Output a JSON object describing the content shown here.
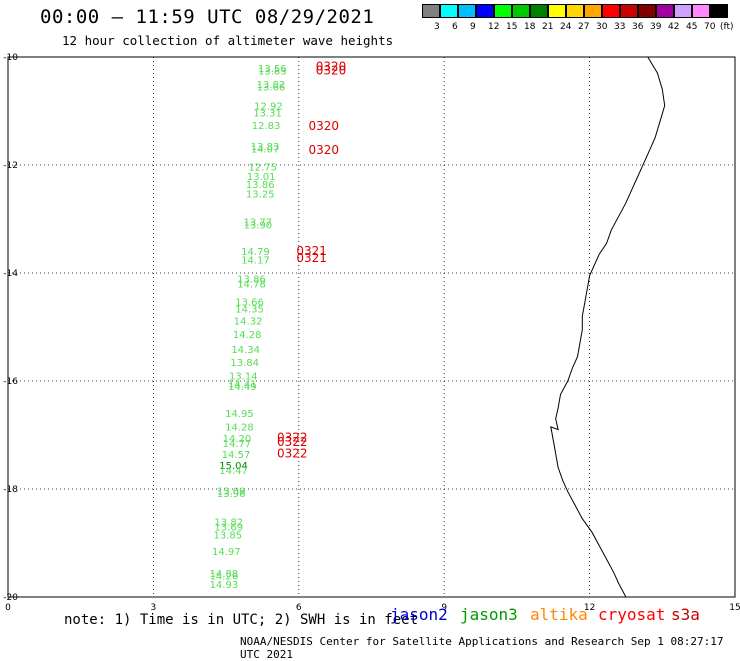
{
  "header": {
    "title": "00:00 — 11:59 UTC 08/29/2021",
    "subtitle": "12 hour collection of altimeter wave heights"
  },
  "colorbar": {
    "labels": [
      "3",
      "6",
      "9",
      "12",
      "15",
      "18",
      "21",
      "24",
      "27",
      "30",
      "33",
      "36",
      "39",
      "42",
      "45",
      "70"
    ],
    "unit": "(ft)",
    "colors": [
      "#808080",
      "#00ffff",
      "#00bfff",
      "#0000ff",
      "#00ff00",
      "#00c800",
      "#008000",
      "#ffff00",
      "#ffd700",
      "#ffa500",
      "#ff0000",
      "#c80000",
      "#800000",
      "#a000a0",
      "#d0a0ff",
      "#ff88ff",
      "#000000"
    ]
  },
  "footer": {
    "note": "note: 1) Time is in UTC; 2) SWH is in feet",
    "credit": "NOAA/NESDIS Center for Satellite Applications and Research   Sep  1 08:27:17 UTC 2021"
  },
  "satellites": [
    {
      "name": "jason2",
      "color": "#0000cc"
    },
    {
      "name": "jason3",
      "color": "#009900"
    },
    {
      "name": "altika",
      "color": "#ff8800"
    },
    {
      "name": "cryosat",
      "color": "#ff0000"
    },
    {
      "name": "s3a",
      "color": "#cc0000"
    }
  ],
  "chart_data": {
    "type": "scatter",
    "title": "12 hour collection of altimeter wave heights",
    "xlabel": "",
    "ylabel": "",
    "xlim": [
      0,
      15
    ],
    "ylim": [
      -20,
      -10
    ],
    "xticks": [
      "0",
      "3",
      "6",
      "9",
      "12",
      "15"
    ],
    "yticks": [
      "-10",
      "-12",
      "-14",
      "-16",
      "-18",
      "-20"
    ],
    "grid": true,
    "wave_heights_ft": [
      {
        "x": 5.75,
        "y": -10.28,
        "label": "13.56",
        "color": "#55dd55"
      },
      {
        "x": 5.75,
        "y": -10.32,
        "label": "13.83",
        "color": "#55dd55"
      },
      {
        "x": 5.72,
        "y": -10.57,
        "label": "13.82",
        "color": "#55dd55"
      },
      {
        "x": 5.72,
        "y": -10.62,
        "label": "13.66",
        "color": "#55dd55"
      },
      {
        "x": 5.67,
        "y": -10.97,
        "label": "12.92",
        "color": "#55dd55"
      },
      {
        "x": 5.65,
        "y": -11.1,
        "label": "13.31",
        "color": "#55dd55"
      },
      {
        "x": 5.62,
        "y": -11.33,
        "label": "12.83",
        "color": "#55dd55"
      },
      {
        "x": 5.6,
        "y": -11.72,
        "label": "13.83",
        "color": "#55dd55"
      },
      {
        "x": 5.6,
        "y": -11.77,
        "label": "14.07",
        "color": "#55dd55"
      },
      {
        "x": 5.55,
        "y": -12.1,
        "label": "12.75",
        "color": "#55dd55"
      },
      {
        "x": 5.52,
        "y": -12.28,
        "label": "13.01",
        "color": "#55dd55"
      },
      {
        "x": 5.5,
        "y": -12.43,
        "label": "13.86",
        "color": "#55dd55"
      },
      {
        "x": 5.5,
        "y": -12.6,
        "label": "13.25",
        "color": "#55dd55"
      },
      {
        "x": 5.45,
        "y": -13.12,
        "label": "13.77",
        "color": "#55dd55"
      },
      {
        "x": 5.45,
        "y": -13.18,
        "label": "13.90",
        "color": "#55dd55"
      },
      {
        "x": 5.4,
        "y": -13.67,
        "label": "14.79",
        "color": "#55dd55"
      },
      {
        "x": 5.4,
        "y": -13.82,
        "label": "14.17",
        "color": "#55dd55"
      },
      {
        "x": 5.32,
        "y": -14.18,
        "label": "13.86",
        "color": "#55dd55"
      },
      {
        "x": 5.32,
        "y": -14.27,
        "label": "14.78",
        "color": "#55dd55"
      },
      {
        "x": 5.28,
        "y": -14.6,
        "label": "13.66",
        "color": "#55dd55"
      },
      {
        "x": 5.28,
        "y": -14.73,
        "label": "14.35",
        "color": "#55dd55"
      },
      {
        "x": 5.25,
        "y": -14.95,
        "label": "14.32",
        "color": "#55dd55"
      },
      {
        "x": 5.23,
        "y": -15.2,
        "label": "14.28",
        "color": "#55dd55"
      },
      {
        "x": 5.2,
        "y": -15.48,
        "label": "14.34",
        "color": "#55dd55"
      },
      {
        "x": 5.18,
        "y": -15.72,
        "label": "13.84",
        "color": "#55dd55"
      },
      {
        "x": 5.15,
        "y": -15.97,
        "label": "13.14",
        "color": "#55dd55"
      },
      {
        "x": 5.13,
        "y": -16.12,
        "label": "14.41",
        "color": "#55dd55"
      },
      {
        "x": 5.13,
        "y": -16.17,
        "label": "14.49",
        "color": "#55dd55"
      },
      {
        "x": 5.07,
        "y": -16.67,
        "label": "14.95",
        "color": "#55dd55"
      },
      {
        "x": 5.07,
        "y": -16.92,
        "label": "14.28",
        "color": "#55dd55"
      },
      {
        "x": 5.02,
        "y": -17.13,
        "label": "14.20",
        "color": "#55dd55"
      },
      {
        "x": 5.02,
        "y": -17.22,
        "label": "14.77",
        "color": "#55dd55"
      },
      {
        "x": 5.0,
        "y": -17.43,
        "label": "14.57",
        "color": "#55dd55"
      },
      {
        "x": 4.95,
        "y": -17.63,
        "label": "15.04",
        "color": "#008800"
      },
      {
        "x": 4.95,
        "y": -17.72,
        "label": "14.47",
        "color": "#55dd55"
      },
      {
        "x": 4.9,
        "y": -18.1,
        "label": "13.09",
        "color": "#55dd55"
      },
      {
        "x": 4.9,
        "y": -18.15,
        "label": "13.96",
        "color": "#55dd55"
      },
      {
        "x": 4.85,
        "y": -18.68,
        "label": "13.82",
        "color": "#55dd55"
      },
      {
        "x": 4.85,
        "y": -18.77,
        "label": "13.69",
        "color": "#55dd55"
      },
      {
        "x": 4.83,
        "y": -18.92,
        "label": "13.85",
        "color": "#55dd55"
      },
      {
        "x": 4.8,
        "y": -19.22,
        "label": "14.97",
        "color": "#55dd55"
      },
      {
        "x": 4.75,
        "y": -19.63,
        "label": "14.88",
        "color": "#55dd55"
      },
      {
        "x": 4.75,
        "y": -19.68,
        "label": "14.26",
        "color": "#55dd55"
      },
      {
        "x": 4.75,
        "y": -19.83,
        "label": "14.93",
        "color": "#55dd55"
      }
    ],
    "pass_times": [
      {
        "x": 6.35,
        "y": -10.25,
        "label": "0320",
        "color": "#dd0000"
      },
      {
        "x": 6.35,
        "y": -10.32,
        "label": "0320",
        "color": "#dd0000"
      },
      {
        "x": 6.2,
        "y": -11.35,
        "label": "0320",
        "color": "#dd0000"
      },
      {
        "x": 6.2,
        "y": -11.8,
        "label": "0320",
        "color": "#dd0000"
      },
      {
        "x": 5.95,
        "y": -13.67,
        "label": "0321",
        "color": "#dd0000"
      },
      {
        "x": 5.95,
        "y": -13.8,
        "label": "0321",
        "color": "#dd0000"
      },
      {
        "x": 5.55,
        "y": -17.12,
        "label": "0322",
        "color": "#dd0000"
      },
      {
        "x": 5.55,
        "y": -17.2,
        "label": "0322",
        "color": "#dd0000"
      },
      {
        "x": 5.55,
        "y": -17.42,
        "label": "0322",
        "color": "#dd0000"
      }
    ],
    "coastline": [
      [
        13.2,
        -10.0
      ],
      [
        13.4,
        -10.3
      ],
      [
        13.5,
        -10.6
      ],
      [
        13.55,
        -10.9
      ],
      [
        13.45,
        -11.2
      ],
      [
        13.35,
        -11.5
      ],
      [
        13.2,
        -11.8
      ],
      [
        13.05,
        -12.1
      ],
      [
        12.9,
        -12.4
      ],
      [
        12.75,
        -12.7
      ],
      [
        12.6,
        -12.95
      ],
      [
        12.45,
        -13.2
      ],
      [
        12.35,
        -13.45
      ],
      [
        12.2,
        -13.65
      ],
      [
        12.1,
        -13.85
      ],
      [
        12.0,
        -14.05
      ],
      [
        11.95,
        -14.3
      ],
      [
        11.9,
        -14.55
      ],
      [
        11.85,
        -14.8
      ],
      [
        11.85,
        -15.05
      ],
      [
        11.8,
        -15.3
      ],
      [
        11.75,
        -15.55
      ],
      [
        11.65,
        -15.75
      ],
      [
        11.55,
        -16.0
      ],
      [
        11.4,
        -16.25
      ],
      [
        11.35,
        -16.5
      ],
      [
        11.3,
        -16.7
      ],
      [
        11.35,
        -16.9
      ],
      [
        11.2,
        -16.85
      ],
      [
        11.25,
        -17.1
      ],
      [
        11.3,
        -17.35
      ],
      [
        11.35,
        -17.6
      ],
      [
        11.45,
        -17.85
      ],
      [
        11.55,
        -18.05
      ],
      [
        11.7,
        -18.3
      ],
      [
        11.85,
        -18.55
      ],
      [
        12.05,
        -18.8
      ],
      [
        12.2,
        -19.05
      ],
      [
        12.35,
        -19.3
      ],
      [
        12.5,
        -19.55
      ],
      [
        12.6,
        -19.75
      ],
      [
        12.75,
        -20.0
      ]
    ]
  }
}
